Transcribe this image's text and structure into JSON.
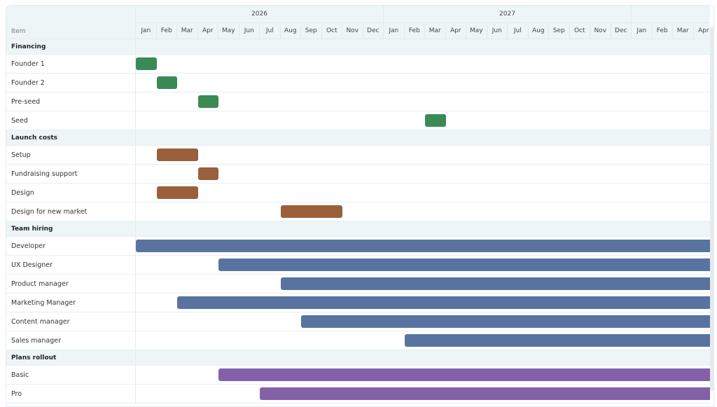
{
  "header": {
    "item_label": "Item",
    "years": [
      "2026",
      "2027",
      ""
    ],
    "months": [
      "Jan",
      "Feb",
      "Mar",
      "Apr",
      "May",
      "Jun",
      "Jul",
      "Aug",
      "Sep",
      "Oct",
      "Nov",
      "Dec"
    ]
  },
  "colors": {
    "Financing": "#3a8a55",
    "Launch costs": "#9a5f3b",
    "Team hiring": "#5873a0",
    "Plans rollout": "#8460a8",
    "header_bg": "#eef5f7"
  },
  "timeline_start": "2026-01",
  "groups": [
    {
      "name": "Financing",
      "items": [
        {
          "label": "Founder 1",
          "start": "2026-01",
          "end": "2026-01"
        },
        {
          "label": "Founder 2",
          "start": "2026-02",
          "end": "2026-02"
        },
        {
          "label": "Pre-seed",
          "start": "2026-04",
          "end": "2026-04"
        },
        {
          "label": "Seed",
          "start": "2027-03",
          "end": "2027-03"
        }
      ]
    },
    {
      "name": "Launch costs",
      "items": [
        {
          "label": "Setup",
          "start": "2026-02",
          "end": "2026-03"
        },
        {
          "label": "Fundraising support",
          "start": "2026-04",
          "end": "2026-04"
        },
        {
          "label": "Design",
          "start": "2026-02",
          "end": "2026-03"
        },
        {
          "label": "Design for new market",
          "start": "2026-08",
          "end": "2026-10"
        }
      ]
    },
    {
      "name": "Team hiring",
      "items": [
        {
          "label": "Developer",
          "start": "2026-01",
          "end": null
        },
        {
          "label": "UX Designer",
          "start": "2026-05",
          "end": null
        },
        {
          "label": "Product manager",
          "start": "2026-08",
          "end": null
        },
        {
          "label": "Marketing Manager",
          "start": "2026-03",
          "end": null
        },
        {
          "label": "Content manager",
          "start": "2026-09",
          "end": null
        },
        {
          "label": "Sales manager",
          "start": "2027-02",
          "end": null
        }
      ]
    },
    {
      "name": "Plans rollout",
      "items": [
        {
          "label": "Basic",
          "start": "2026-05",
          "end": null
        },
        {
          "label": "Pro",
          "start": "2026-07",
          "end": null
        }
      ]
    }
  ]
}
